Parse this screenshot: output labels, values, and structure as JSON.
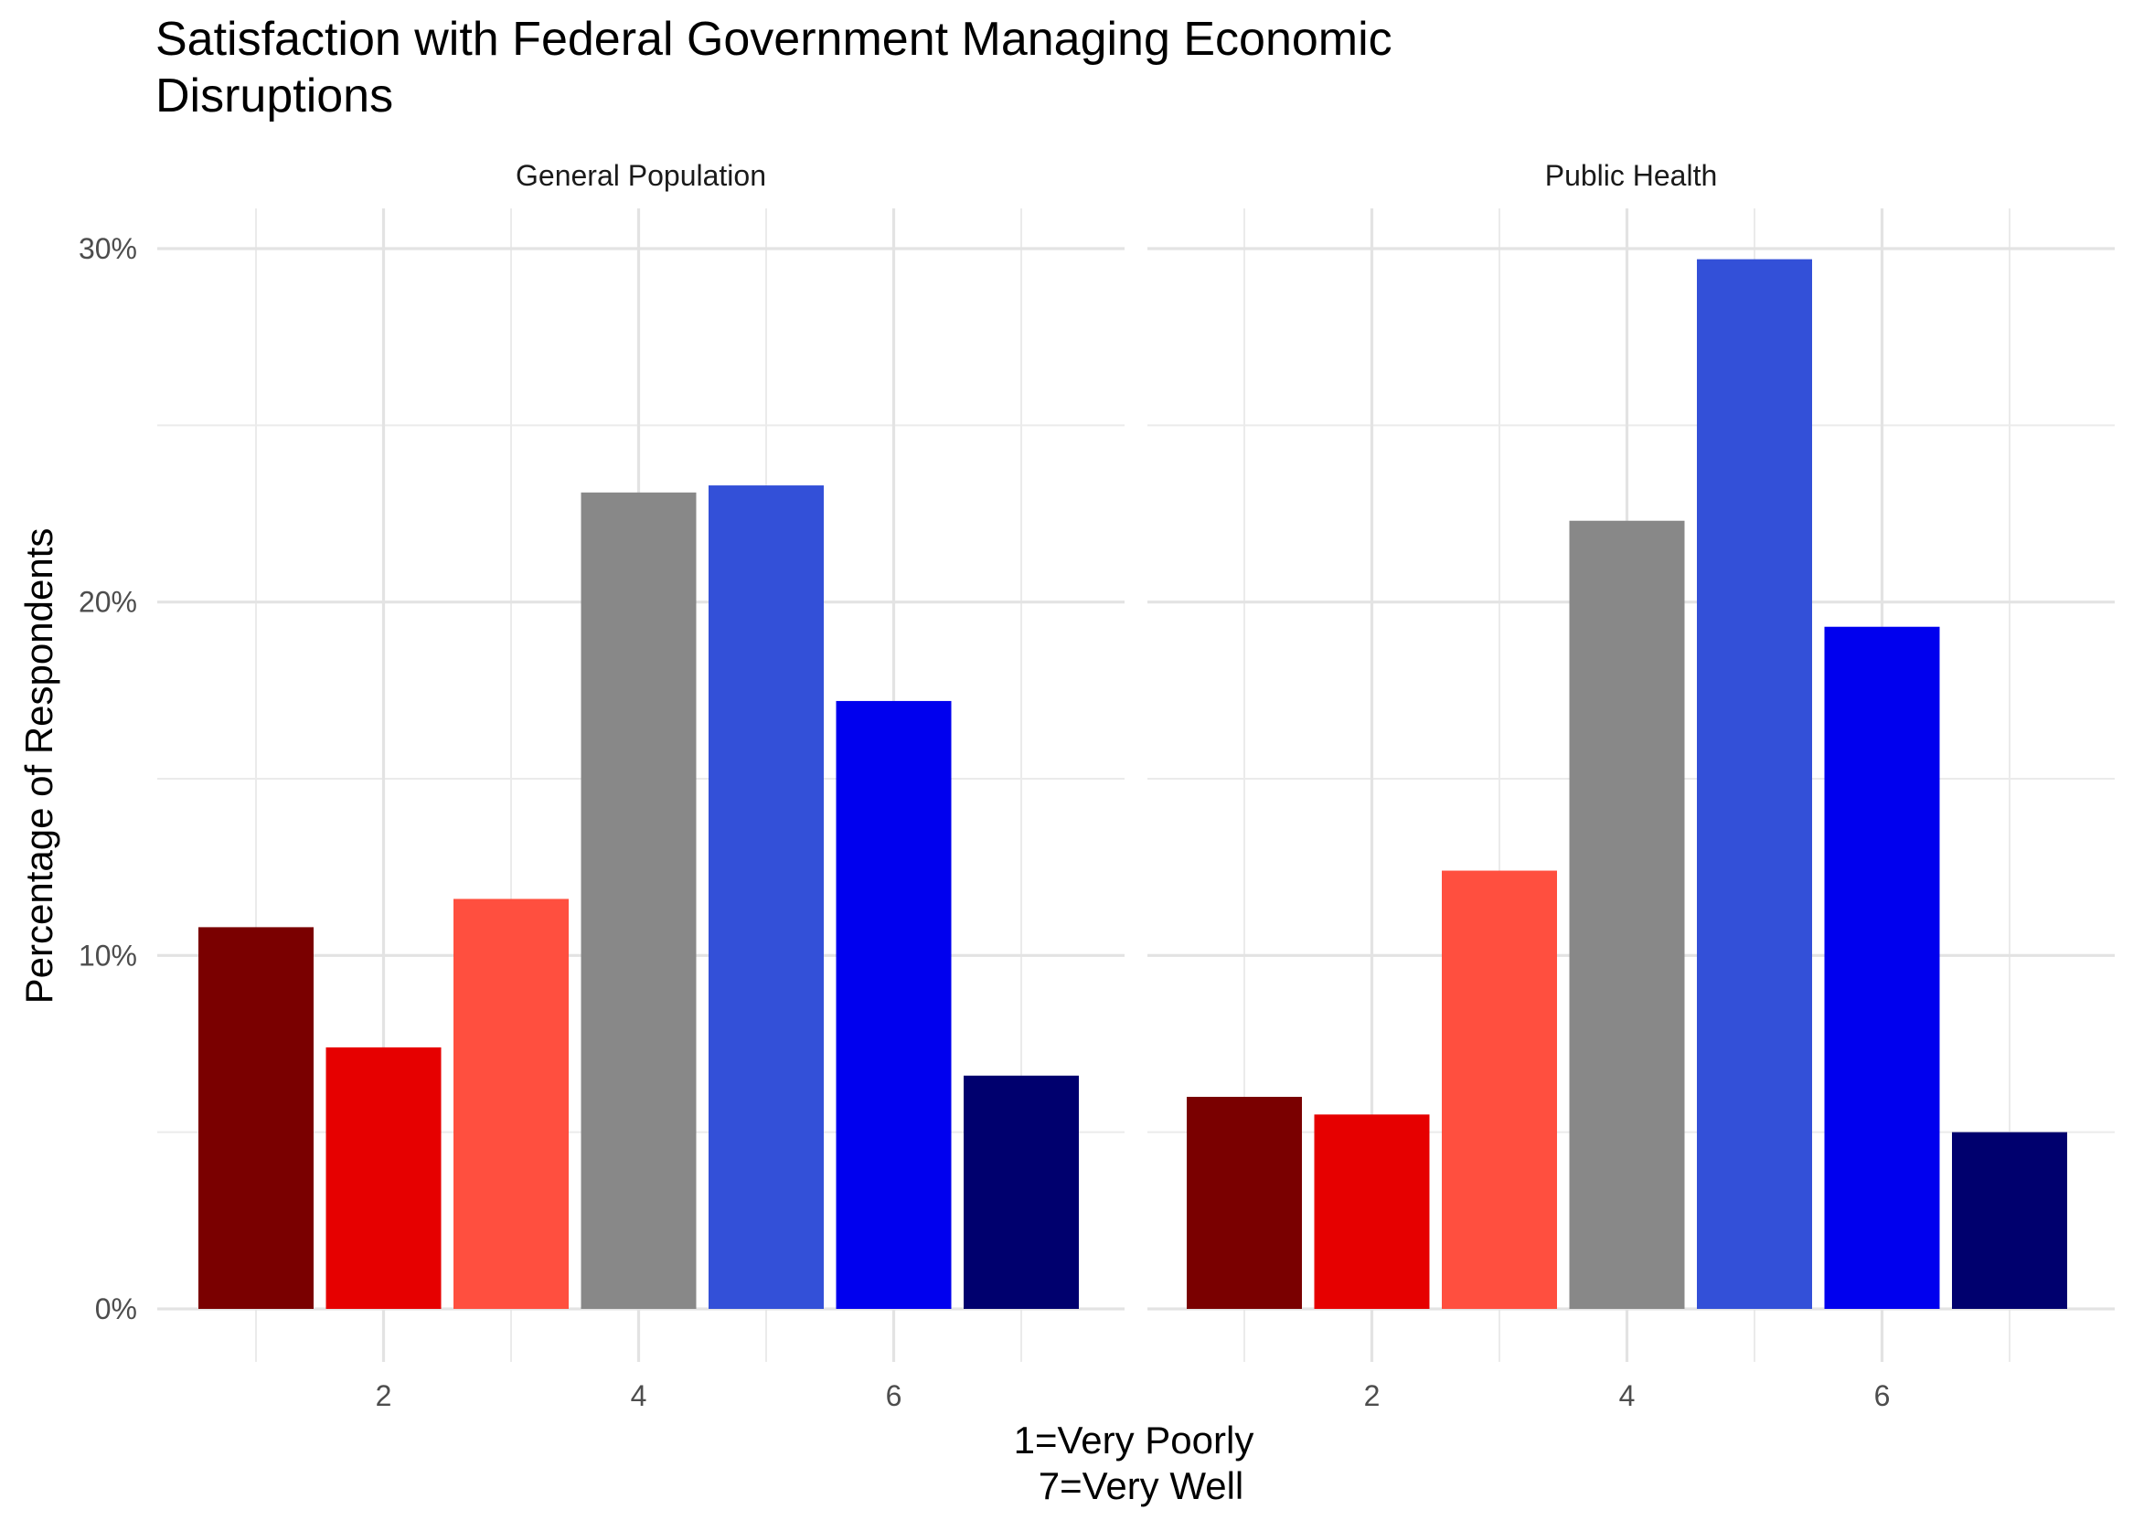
{
  "chart_data": {
    "type": "bar",
    "title_line1": "Satisfaction with Federal Government Managing Economic",
    "title_line2": "Disruptions",
    "ylabel": "Percentage of Respondents",
    "xlabel_line1": "1=Very Poorly",
    "xlabel_line2": "7=Very Well",
    "x_ticks": [
      "2",
      "4",
      "6"
    ],
    "y_ticks": [
      "0%",
      "10%",
      "20%",
      "30%"
    ],
    "ylim": [
      0,
      30
    ],
    "xlim": [
      1,
      7
    ],
    "grid": true,
    "categories": [
      1,
      2,
      3,
      4,
      5,
      6,
      7
    ],
    "colors": [
      "#7a0000",
      "#e60000",
      "#ff4f3f",
      "#888888",
      "#3350d8",
      "#0000ee",
      "#00006e"
    ],
    "panels": [
      {
        "name": "General Population",
        "values": [
          10.8,
          7.4,
          11.6,
          23.1,
          23.3,
          17.2,
          6.6
        ]
      },
      {
        "name": "Public Health",
        "values": [
          6.0,
          5.5,
          12.4,
          22.3,
          29.7,
          19.3,
          5.0
        ]
      }
    ]
  }
}
